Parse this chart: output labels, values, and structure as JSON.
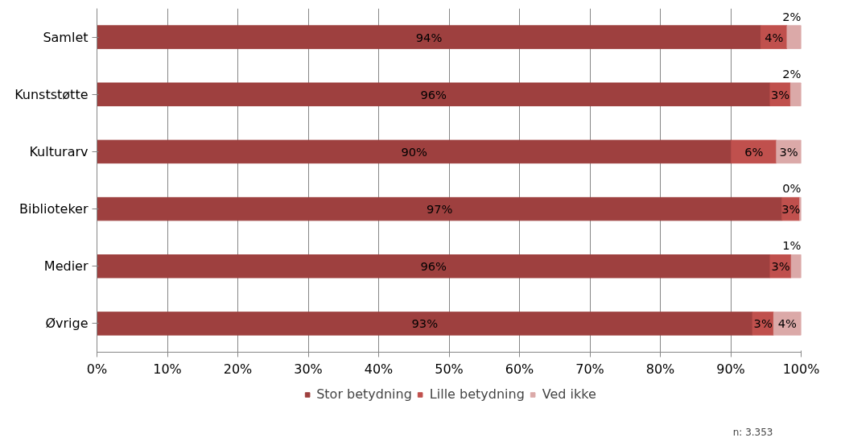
{
  "chart_data": {
    "type": "bar",
    "orientation": "horizontal",
    "stacked": true,
    "categories": [
      "Samlet",
      "Kunststøtte",
      "Kulturarv",
      "Biblioteker",
      "Medier",
      "Øvrige"
    ],
    "series": [
      {
        "name": "Stor betydning",
        "color": "#9e403f",
        "values": [
          94.3,
          95.6,
          90.1,
          97.3,
          95.6,
          93.1
        ],
        "value_labels": [
          "94%",
          "96%",
          "90%",
          "97%",
          "96%",
          "93%"
        ]
      },
      {
        "name": "Lille betydning",
        "color": "#c0504d",
        "values": [
          3.7,
          2.9,
          6.4,
          2.5,
          3.0,
          3.0
        ],
        "value_labels": [
          "4%",
          "3%",
          "6%",
          "3%",
          "3%",
          "3%"
        ]
      },
      {
        "name": "Ved ikke",
        "color": "#dba9a8",
        "values": [
          2.0,
          1.5,
          3.5,
          0.2,
          1.4,
          3.9
        ],
        "value_labels": [
          "2%",
          "2%",
          "3%",
          "0%",
          "1%",
          "4%"
        ]
      }
    ],
    "xlim": [
      0,
      100
    ],
    "xticks": [
      {
        "value": 0,
        "label": "0%"
      },
      {
        "value": 10,
        "label": "10%"
      },
      {
        "value": 20,
        "label": "20%"
      },
      {
        "value": 30,
        "label": "30%"
      },
      {
        "value": 40,
        "label": "40%"
      },
      {
        "value": 50,
        "label": "50%"
      },
      {
        "value": 60,
        "label": "60%"
      },
      {
        "value": 70,
        "label": "70%"
      },
      {
        "value": 80,
        "label": "80%"
      },
      {
        "value": 90,
        "label": "90%"
      },
      {
        "value": 100,
        "label": "100%"
      }
    ],
    "grid": "x",
    "legend": "bottom",
    "annotations": [
      "n: 3.353"
    ]
  }
}
